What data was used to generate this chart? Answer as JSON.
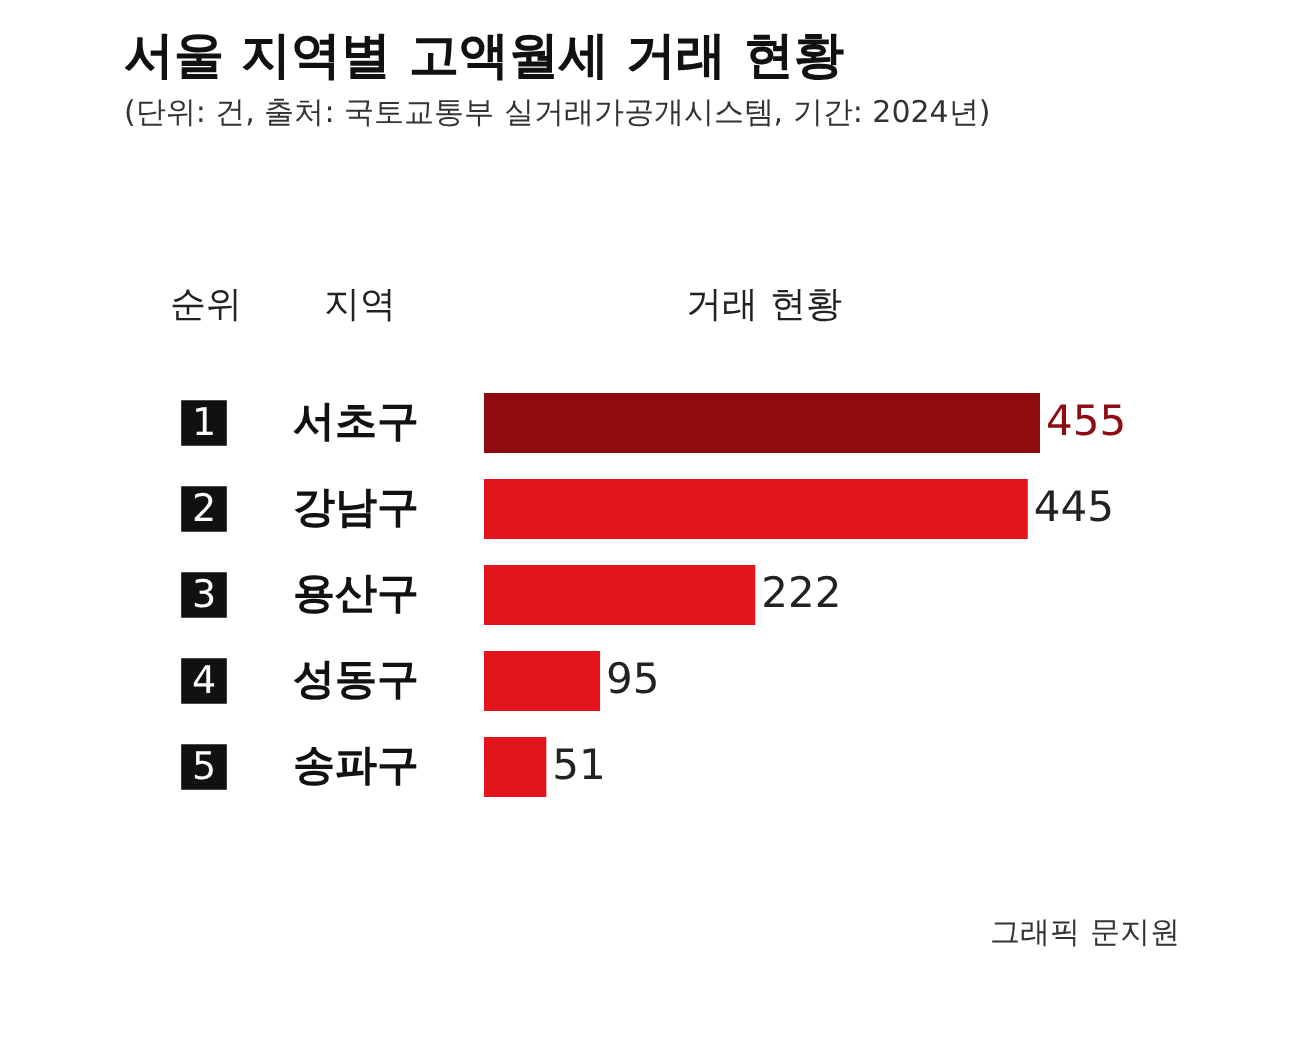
{
  "chart_data": {
    "type": "bar",
    "orientation": "horizontal",
    "title": "서울 지역별 고액월세 거래 현황",
    "subtitle": "(단위: 건, 출처: 국토교통부 실거래가공개시스템, 기간: 2024년)",
    "categories": [
      "서초구",
      "강남구",
      "용산구",
      "성동구",
      "송파구"
    ],
    "values": [
      455,
      445,
      222,
      95,
      51
    ],
    "colors": [
      "#8e0c10",
      "#e3141c",
      "#e3141c",
      "#e3141c",
      "#e3141c"
    ],
    "data_labels": true,
    "annotations": [
      "순위",
      "지역",
      "거래 현황",
      "1",
      "2",
      "3",
      "4",
      "5",
      "그래픽 문지원"
    ]
  }
}
